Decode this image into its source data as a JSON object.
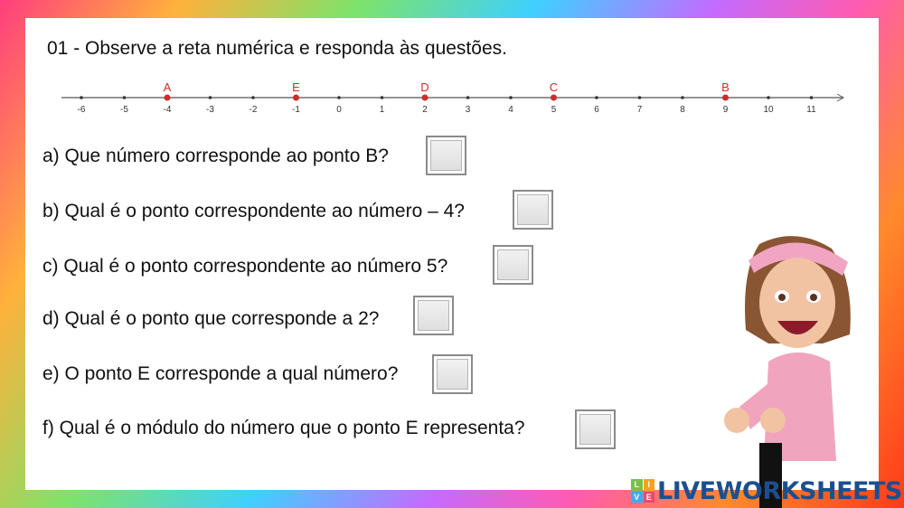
{
  "title": "01 - Observe a reta numérica e responda às questões.",
  "number_line": {
    "ticks": [
      -6,
      -5,
      -4,
      -3,
      -2,
      -1,
      0,
      1,
      2,
      3,
      4,
      5,
      6,
      7,
      8,
      9,
      10,
      11
    ],
    "points": [
      {
        "label": "A",
        "value": -4
      },
      {
        "label": "E",
        "value": -1
      },
      {
        "label": "D",
        "value": 2
      },
      {
        "label": "C",
        "value": 5
      },
      {
        "label": "B",
        "value": 9
      }
    ],
    "point_color": "#d22b2b"
  },
  "questions": [
    {
      "text": "a) Que número corresponde ao ponto B?",
      "answer": ""
    },
    {
      "text": "b) Qual é o ponto correspondente ao número – 4?",
      "answer": ""
    },
    {
      "text": "c) Qual é o ponto correspondente ao número 5?",
      "answer": ""
    },
    {
      "text": "d) Qual é o ponto que corresponde a 2?",
      "answer": ""
    },
    {
      "text": "e) O ponto E corresponde a qual número?",
      "answer": ""
    },
    {
      "text": "f) Qual é o módulo do número que o ponto E representa?",
      "answer": ""
    }
  ],
  "brand": {
    "logo": "LIVEWORKSHEETS",
    "letters": [
      "L",
      "I",
      "V",
      "E"
    ]
  }
}
